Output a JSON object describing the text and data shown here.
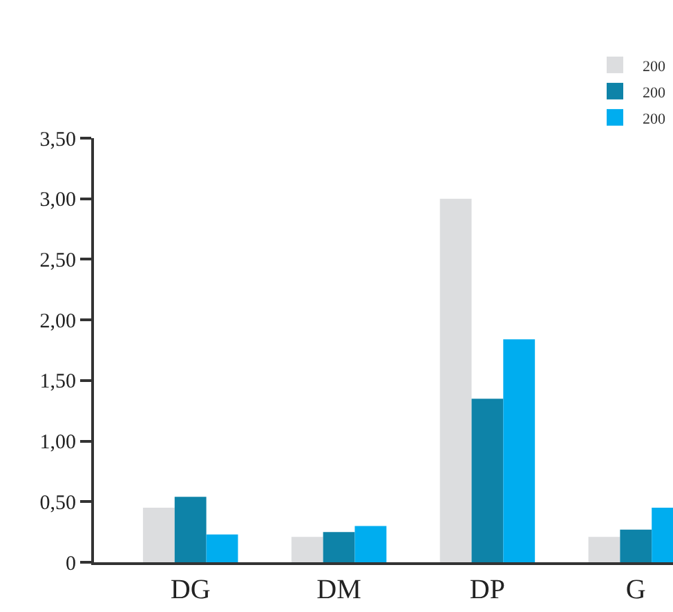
{
  "chart_data": {
    "type": "bar",
    "categories": [
      "DG",
      "DM",
      "DP",
      "G"
    ],
    "series": [
      {
        "name": "200",
        "color": "#dcdddf",
        "values": [
          0.45,
          0.21,
          3.0,
          0.21
        ]
      },
      {
        "name": "200",
        "color": "#0e83a8",
        "values": [
          0.54,
          0.25,
          1.35,
          0.27
        ]
      },
      {
        "name": "200",
        "color": "#00adef",
        "values": [
          0.23,
          0.3,
          1.84,
          0.45
        ]
      }
    ],
    "ylim": [
      0,
      3.5
    ],
    "yticks": [
      0,
      {
        "value": 0.5,
        "label": "0,50"
      },
      {
        "value": 1.0,
        "label": "1,00"
      },
      {
        "value": 1.5,
        "label": "1,50"
      },
      {
        "value": 2.0,
        "label": "2,00"
      },
      {
        "value": 2.5,
        "label": "2,50"
      },
      {
        "value": 3.0,
        "label": "3,00"
      },
      {
        "value": 3.5,
        "label": "3,50"
      }
    ],
    "legend": "top right"
  }
}
